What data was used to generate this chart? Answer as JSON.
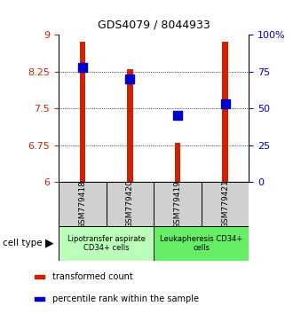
{
  "title": "GDS4079 / 8044933",
  "samples": [
    "GSM779418",
    "GSM779420",
    "GSM779419",
    "GSM779421"
  ],
  "transformed_counts": [
    8.85,
    8.3,
    6.8,
    8.85
  ],
  "percentile_ranks": [
    78,
    70,
    45,
    53
  ],
  "ylim_left": [
    6,
    9
  ],
  "ylim_right": [
    0,
    100
  ],
  "yticks_left": [
    6,
    6.75,
    7.5,
    8.25,
    9
  ],
  "yticks_right": [
    0,
    25,
    50,
    75,
    100
  ],
  "ytick_labels_right": [
    "0",
    "25",
    "50",
    "75",
    "100%"
  ],
  "bar_color": "#cc2200",
  "dot_color": "#0000cc",
  "bar_width": 0.12,
  "dot_size": 55,
  "cell_groups": [
    {
      "label": "Lipotransfer aspirate\nCD34+ cells",
      "color": "#bbffbb",
      "samples": [
        0,
        1
      ]
    },
    {
      "label": "Leukapheresis CD34+\ncells",
      "color": "#66ee66",
      "samples": [
        2,
        3
      ]
    }
  ],
  "cell_type_label": "cell type",
  "legend_items": [
    {
      "color": "#cc2200",
      "label": "transformed count"
    },
    {
      "color": "#0000cc",
      "label": "percentile rank within the sample"
    }
  ],
  "tick_label_color_left": "#cc2200",
  "tick_label_color_right": "#0000cc",
  "sample_box_color": "#d0d0d0",
  "title_fontsize": 9,
  "axis_fontsize": 8,
  "sample_fontsize": 6.5,
  "group_fontsize": 6,
  "legend_fontsize": 7
}
